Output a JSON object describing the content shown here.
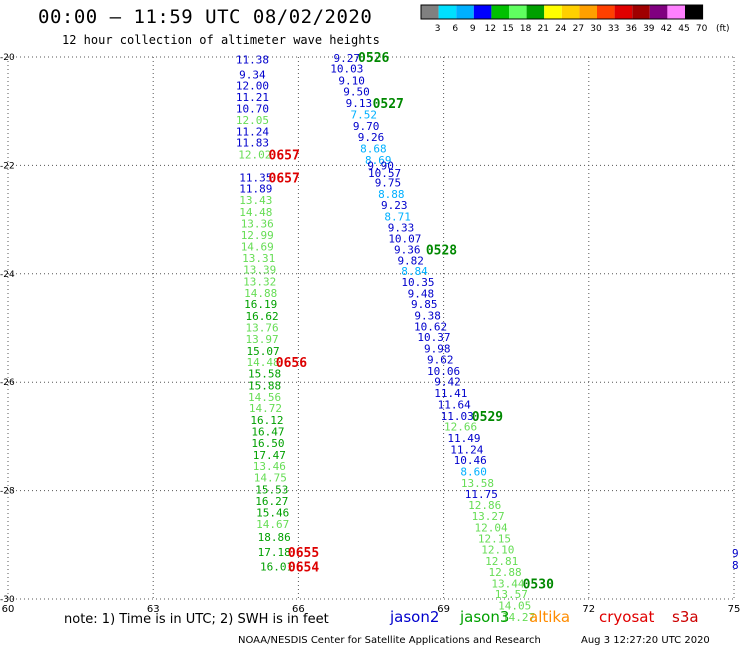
{
  "title": "00:00 – 11:59 UTC 08/02/2020",
  "subtitle": "12 hour collection of altimeter wave heights",
  "note": "note:  1) Time is in UTC;  2) SWH is in feet",
  "credit": "NOAA/NESDIS Center for Satellite Applications and Research",
  "timestamp": "Aug  3 12:27:20 UTC 2020",
  "satellites": [
    {
      "name": "jason2",
      "color": "#0000cc"
    },
    {
      "name": "jason3",
      "color": "#00a000"
    },
    {
      "name": "altika",
      "color": "#ff8c00"
    },
    {
      "name": "cryosat",
      "color": "#e00000"
    },
    {
      "name": "s3a",
      "color": "#cc0000"
    }
  ],
  "color_scale": {
    "labels": [
      "3",
      "6",
      "9",
      "12",
      "15",
      "18",
      "21",
      "24",
      "27",
      "30",
      "33",
      "36",
      "39",
      "42",
      "45",
      "70"
    ],
    "unit": "(ft)",
    "colors": [
      "#808080",
      "#00e0ff",
      "#00b0ff",
      "#0000ff",
      "#00c000",
      "#60ff60",
      "#00a000",
      "#ffff00",
      "#ffd000",
      "#ffa000",
      "#ff4000",
      "#e00000",
      "#a00000",
      "#800080",
      "#ff80ff",
      "#000000"
    ]
  },
  "chart_data": {
    "type": "scatter",
    "title": "00:00 – 11:59 UTC 08/02/2020",
    "subtitle": "12 hour collection of altimeter wave heights",
    "xlim": [
      60,
      75
    ],
    "ylim": [
      -30,
      -20
    ],
    "x_ticks": [
      "60",
      "63",
      "66",
      "69",
      "72",
      "75"
    ],
    "y_ticks": [
      "-20",
      "-22",
      "-24",
      "-26",
      "-28",
      "-30"
    ],
    "grid": true,
    "tracks": [
      {
        "points": [
          {
            "lon": 65.05,
            "lat": -20.05,
            "swh": "11.38",
            "color": "#0000cc"
          },
          {
            "lon": 65.05,
            "lat": -20.32,
            "swh": "9.34",
            "color": "#0000cc"
          },
          {
            "lon": 65.05,
            "lat": -20.53,
            "swh": "12.00",
            "color": "#0000cc"
          },
          {
            "lon": 65.05,
            "lat": -20.74,
            "swh": "11.21",
            "color": "#0000cc"
          },
          {
            "lon": 65.05,
            "lat": -20.95,
            "swh": "10.70",
            "color": "#0000cc"
          },
          {
            "lon": 65.05,
            "lat": -21.16,
            "swh": "12.05",
            "color": "#66dd55"
          },
          {
            "lon": 65.05,
            "lat": -21.37,
            "swh": "11.24",
            "color": "#0000cc"
          },
          {
            "lon": 65.05,
            "lat": -21.58,
            "swh": "11.83",
            "color": "#0000cc"
          },
          {
            "lon": 65.1,
            "lat": -21.8,
            "swh": "12.02",
            "color": "#66dd55"
          },
          {
            "lon": 65.1,
            "lat": -22.0,
            "swh": "",
            "color": "#66dd55"
          },
          {
            "lon": 65.12,
            "lat": -22.22,
            "swh": "11.35",
            "color": "#0000cc"
          },
          {
            "lon": 65.12,
            "lat": -22.43,
            "swh": "11.89",
            "color": "#0000cc"
          },
          {
            "lon": 65.12,
            "lat": -22.64,
            "swh": "13.43",
            "color": "#66dd55"
          },
          {
            "lon": 65.12,
            "lat": -22.86,
            "swh": "14.48",
            "color": "#66dd55"
          },
          {
            "lon": 65.15,
            "lat": -23.07,
            "swh": "13.36",
            "color": "#66dd55"
          },
          {
            "lon": 65.15,
            "lat": -23.28,
            "swh": "12.99",
            "color": "#66dd55"
          },
          {
            "lon": 65.15,
            "lat": -23.5,
            "swh": "14.69",
            "color": "#66dd55"
          },
          {
            "lon": 65.18,
            "lat": -23.71,
            "swh": "13.31",
            "color": "#66dd55"
          },
          {
            "lon": 65.2,
            "lat": -23.92,
            "swh": "13.39",
            "color": "#66dd55"
          },
          {
            "lon": 65.2,
            "lat": -24.14,
            "swh": "13.32",
            "color": "#66dd55"
          },
          {
            "lon": 65.22,
            "lat": -24.35,
            "swh": "14.88",
            "color": "#66dd55"
          },
          {
            "lon": 65.22,
            "lat": -24.56,
            "swh": "16.19",
            "color": "#00a000"
          },
          {
            "lon": 65.25,
            "lat": -24.78,
            "swh": "16.62",
            "color": "#00a000"
          },
          {
            "lon": 65.25,
            "lat": -24.99,
            "swh": "13.76",
            "color": "#66dd55"
          },
          {
            "lon": 65.25,
            "lat": -25.2,
            "swh": "13.97",
            "color": "#66dd55"
          },
          {
            "lon": 65.27,
            "lat": -25.42,
            "swh": "15.07",
            "color": "#00a000"
          },
          {
            "lon": 65.27,
            "lat": -25.63,
            "swh": "14.48",
            "color": "#66dd55"
          },
          {
            "lon": 65.3,
            "lat": -25.84,
            "swh": "15.58",
            "color": "#00a000"
          },
          {
            "lon": 65.3,
            "lat": -26.06,
            "swh": "15.88",
            "color": "#00a000"
          },
          {
            "lon": 65.3,
            "lat": -26.27,
            "swh": "14.56",
            "color": "#66dd55"
          },
          {
            "lon": 65.32,
            "lat": -26.48,
            "swh": "14.72",
            "color": "#66dd55"
          },
          {
            "lon": 65.35,
            "lat": -26.7,
            "swh": "16.12",
            "color": "#00a000"
          },
          {
            "lon": 65.37,
            "lat": -26.91,
            "swh": "16.47",
            "color": "#00a000"
          },
          {
            "lon": 65.37,
            "lat": -27.12,
            "swh": "16.50",
            "color": "#00a000"
          },
          {
            "lon": 65.4,
            "lat": -27.34,
            "swh": "17.47",
            "color": "#00a000"
          },
          {
            "lon": 65.4,
            "lat": -27.55,
            "swh": "13.46",
            "color": "#66dd55"
          },
          {
            "lon": 65.42,
            "lat": -27.76,
            "swh": "14.75",
            "color": "#66dd55"
          },
          {
            "lon": 65.45,
            "lat": -27.98,
            "swh": "15.53",
            "color": "#00a000"
          },
          {
            "lon": 65.45,
            "lat": -28.19,
            "swh": "16.27",
            "color": "#00a000"
          },
          {
            "lon": 65.47,
            "lat": -28.4,
            "swh": "15.46",
            "color": "#00a000"
          },
          {
            "lon": 65.47,
            "lat": -28.62,
            "swh": "14.67",
            "color": "#66dd55"
          },
          {
            "lon": 65.5,
            "lat": -28.86,
            "swh": "18.86",
            "color": "#00a000"
          },
          {
            "lon": 65.5,
            "lat": -29.13,
            "swh": "17.18",
            "color": "#00a000"
          },
          {
            "lon": 65.55,
            "lat": -29.4,
            "swh": "16.01",
            "color": "#00a000"
          }
        ]
      },
      {
        "points": [
          {
            "lon": 67.0,
            "lat": -20.02,
            "swh": "9.27",
            "color": "#0000cc"
          },
          {
            "lon": 67.0,
            "lat": -20.21,
            "swh": "10.03",
            "color": "#0000cc"
          },
          {
            "lon": 67.1,
            "lat": -20.43,
            "swh": "9.10",
            "color": "#0000cc"
          },
          {
            "lon": 67.2,
            "lat": -20.64,
            "swh": "9.50",
            "color": "#0000cc"
          },
          {
            "lon": 67.25,
            "lat": -20.85,
            "swh": "9.13",
            "color": "#0000cc"
          },
          {
            "lon": 67.35,
            "lat": -21.06,
            "swh": "7.52",
            "color": "#00b0ff"
          },
          {
            "lon": 67.4,
            "lat": -21.27,
            "swh": "9.70",
            "color": "#0000cc"
          },
          {
            "lon": 67.5,
            "lat": -21.48,
            "swh": "9.26",
            "color": "#0000cc"
          },
          {
            "lon": 67.55,
            "lat": -21.69,
            "swh": "8.68",
            "color": "#00b0ff"
          },
          {
            "lon": 67.65,
            "lat": -21.9,
            "swh": "8.69",
            "color": "#00b0ff"
          },
          {
            "lon": 67.7,
            "lat": -22.0,
            "swh": "9.90",
            "color": "#0000cc"
          },
          {
            "lon": 67.78,
            "lat": -22.14,
            "swh": "10.57",
            "color": "#0000cc"
          },
          {
            "lon": 67.85,
            "lat": -22.32,
            "swh": "9.75",
            "color": "#0000cc"
          },
          {
            "lon": 67.92,
            "lat": -22.53,
            "swh": "8.88",
            "color": "#00b0ff"
          },
          {
            "lon": 67.98,
            "lat": -22.73,
            "swh": "9.23",
            "color": "#0000cc"
          },
          {
            "lon": 68.05,
            "lat": -22.94,
            "swh": "8.71",
            "color": "#00b0ff"
          },
          {
            "lon": 68.12,
            "lat": -23.15,
            "swh": "9.33",
            "color": "#0000cc"
          },
          {
            "lon": 68.2,
            "lat": -23.35,
            "swh": "10.07",
            "color": "#0000cc"
          },
          {
            "lon": 68.25,
            "lat": -23.55,
            "swh": "9.36",
            "color": "#0000cc"
          },
          {
            "lon": 68.32,
            "lat": -23.75,
            "swh": "9.82",
            "color": "#0000cc"
          },
          {
            "lon": 68.4,
            "lat": -23.95,
            "swh": "8.84",
            "color": "#00b0ff"
          },
          {
            "lon": 68.47,
            "lat": -24.15,
            "swh": "10.35",
            "color": "#0000cc"
          },
          {
            "lon": 68.53,
            "lat": -24.36,
            "swh": "9.48",
            "color": "#0000cc"
          },
          {
            "lon": 68.6,
            "lat": -24.56,
            "swh": "9.85",
            "color": "#0000cc"
          },
          {
            "lon": 68.67,
            "lat": -24.77,
            "swh": "9.38",
            "color": "#0000cc"
          },
          {
            "lon": 68.73,
            "lat": -24.97,
            "swh": "10.62",
            "color": "#0000cc"
          },
          {
            "lon": 68.8,
            "lat": -25.17,
            "swh": "10.37",
            "color": "#0000cc"
          },
          {
            "lon": 68.87,
            "lat": -25.38,
            "swh": "9.98",
            "color": "#0000cc"
          },
          {
            "lon": 68.93,
            "lat": -25.58,
            "swh": "9.62",
            "color": "#0000cc"
          },
          {
            "lon": 69.0,
            "lat": -25.79,
            "swh": "10.06",
            "color": "#0000cc"
          },
          {
            "lon": 69.08,
            "lat": -25.99,
            "swh": "9.42",
            "color": "#0000cc"
          },
          {
            "lon": 69.15,
            "lat": -26.2,
            "swh": "11.41",
            "color": "#0000cc"
          },
          {
            "lon": 69.22,
            "lat": -26.41,
            "swh": "11.64",
            "color": "#0000cc"
          },
          {
            "lon": 69.28,
            "lat": -26.62,
            "swh": "11.03",
            "color": "#0000cc"
          },
          {
            "lon": 69.35,
            "lat": -26.82,
            "swh": "12.66",
            "color": "#66dd55"
          },
          {
            "lon": 69.42,
            "lat": -27.03,
            "swh": "11.49",
            "color": "#0000cc"
          },
          {
            "lon": 69.48,
            "lat": -27.24,
            "swh": "11.24",
            "color": "#0000cc"
          },
          {
            "lon": 69.55,
            "lat": -27.44,
            "swh": "10.46",
            "color": "#0000cc"
          },
          {
            "lon": 69.62,
            "lat": -27.65,
            "swh": "8.60",
            "color": "#00b0ff"
          },
          {
            "lon": 69.7,
            "lat": -27.86,
            "swh": "13.58",
            "color": "#66dd55"
          },
          {
            "lon": 69.78,
            "lat": -28.06,
            "swh": "11.75",
            "color": "#0000cc"
          },
          {
            "lon": 69.85,
            "lat": -28.27,
            "swh": "12.86",
            "color": "#66dd55"
          },
          {
            "lon": 69.92,
            "lat": -28.47,
            "swh": "13.27",
            "color": "#66dd55"
          },
          {
            "lon": 69.98,
            "lat": -28.68,
            "swh": "12.04",
            "color": "#66dd55"
          },
          {
            "lon": 70.05,
            "lat": -28.88,
            "swh": "12.15",
            "color": "#66dd55"
          },
          {
            "lon": 70.12,
            "lat": -29.09,
            "swh": "12.10",
            "color": "#66dd55"
          },
          {
            "lon": 70.2,
            "lat": -29.3,
            "swh": "12.81",
            "color": "#66dd55"
          },
          {
            "lon": 70.27,
            "lat": -29.5,
            "swh": "12.88",
            "color": "#66dd55"
          },
          {
            "lon": 70.33,
            "lat": -29.71,
            "swh": "13.44",
            "color": "#66dd55"
          },
          {
            "lon": 70.4,
            "lat": -29.91,
            "swh": "13.57",
            "color": "#66dd55"
          },
          {
            "lon": 70.47,
            "lat": -30.12,
            "swh": "14.05",
            "color": "#66dd55"
          },
          {
            "lon": 70.55,
            "lat": -30.33,
            "swh": "14.27",
            "color": "#66dd55"
          }
        ]
      }
    ],
    "time_labels": [
      {
        "text": "0526",
        "lon": 67.15,
        "lat": -20.0,
        "color": "#008800"
      },
      {
        "text": "0527",
        "lon": 67.45,
        "lat": -20.85,
        "color": "#008800"
      },
      {
        "text": "0657",
        "lon": 65.3,
        "lat": -21.8,
        "color": "#dd0000"
      },
      {
        "text": "0657",
        "lon": 65.3,
        "lat": -22.22,
        "color": "#dd0000"
      },
      {
        "text": "0528",
        "lon": 68.55,
        "lat": -23.55,
        "color": "#008800"
      },
      {
        "text": "0656",
        "lon": 65.45,
        "lat": -25.63,
        "color": "#dd0000"
      },
      {
        "text": "0529",
        "lon": 69.5,
        "lat": -26.62,
        "color": "#008800"
      },
      {
        "text": "0530",
        "lon": 70.55,
        "lat": -29.71,
        "color": "#008800"
      },
      {
        "text": "0655",
        "lon": 65.7,
        "lat": -29.13,
        "color": "#dd0000"
      },
      {
        "text": "0654",
        "lon": 65.7,
        "lat": -29.4,
        "color": "#dd0000"
      }
    ],
    "edge_marks": [
      {
        "text": "9",
        "lon": 75.0,
        "lat": -29.15,
        "color": "#0000cc"
      },
      {
        "text": "8",
        "lon": 75.0,
        "lat": -29.37,
        "color": "#0000cc"
      }
    ]
  }
}
